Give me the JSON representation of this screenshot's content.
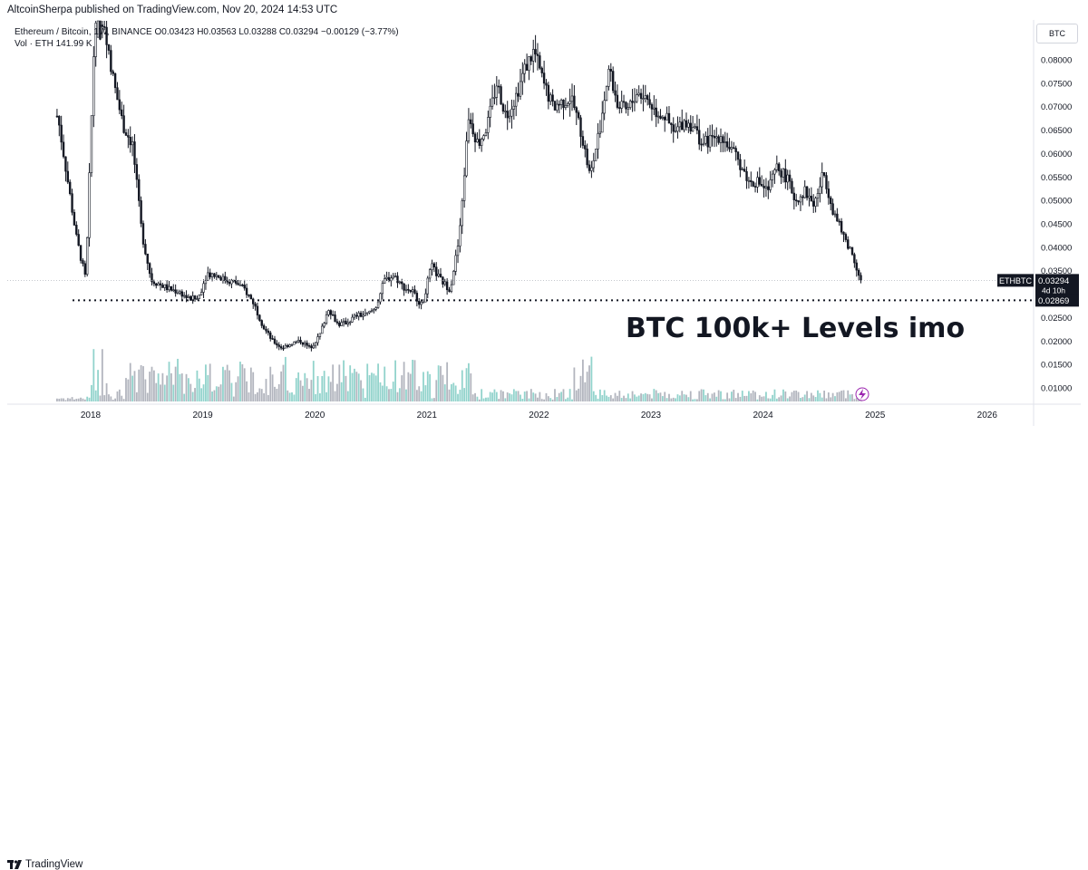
{
  "header": {
    "published": "AltcoinSherpa published on TradingView.com, Nov 20, 2024 14:53 UTC"
  },
  "legend": {
    "line1": "Ethereum / Bitcoin, 1W, BINANCE  O0.03423  H0.03563  L0.03288  C0.03294  −0.00129 (−3.77%)",
    "line2": "Vol · ETH  141.99 K"
  },
  "currency_button": "BTC",
  "footer": {
    "brand": "TradingView"
  },
  "colors": {
    "candle": "#131722",
    "volume_up": "#92d3cc",
    "volume_down": "#b2b5be",
    "axis_text": "#131722",
    "grid": "#f0f3fa",
    "price_line": "#787b86"
  },
  "chart_data": {
    "type": "candlestick",
    "symbol": "ETHBTC",
    "title": "Ethereum / Bitcoin, 1W, BINANCE",
    "x_ticks": [
      "2018",
      "2019",
      "2020",
      "2021",
      "2022",
      "2023",
      "2024",
      "2025",
      "2026"
    ],
    "y_ticks": [
      0.01,
      0.015,
      0.02,
      0.025,
      0.03,
      0.035,
      0.04,
      0.045,
      0.05,
      0.055,
      0.06,
      0.065,
      0.07,
      0.075,
      0.08
    ],
    "y_tick_labels": [
      "0.01000",
      "0.01500",
      "0.02000",
      "0.02500",
      "0.03000",
      "0.03500",
      "0.04000",
      "0.04500",
      "0.05000",
      "0.05500",
      "0.06000",
      "0.06500",
      "0.07000",
      "0.07500",
      "0.08000"
    ],
    "ylim": [
      0.0065,
      0.0843
    ],
    "price_series": [
      {
        "date": "2017-09",
        "close": 0.068
      },
      {
        "date": "2017-10",
        "close": 0.055
      },
      {
        "date": "2017-11",
        "close": 0.042
      },
      {
        "date": "2017-12",
        "close": 0.033
      },
      {
        "date": "2018-01",
        "close": 0.09
      },
      {
        "date": "2018-02",
        "close": 0.088
      },
      {
        "date": "2018-03",
        "close": 0.075
      },
      {
        "date": "2018-04",
        "close": 0.066
      },
      {
        "date": "2018-05",
        "close": 0.062
      },
      {
        "date": "2018-06",
        "close": 0.043
      },
      {
        "date": "2018-07",
        "close": 0.033
      },
      {
        "date": "2018-08",
        "close": 0.032
      },
      {
        "date": "2018-09",
        "close": 0.031
      },
      {
        "date": "2018-10",
        "close": 0.0305
      },
      {
        "date": "2018-11",
        "close": 0.029
      },
      {
        "date": "2018-12",
        "close": 0.029
      },
      {
        "date": "2019-01",
        "close": 0.0345
      },
      {
        "date": "2019-02",
        "close": 0.034
      },
      {
        "date": "2019-03",
        "close": 0.033
      },
      {
        "date": "2019-04",
        "close": 0.0325
      },
      {
        "date": "2019-05",
        "close": 0.031
      },
      {
        "date": "2019-06",
        "close": 0.028
      },
      {
        "date": "2019-07",
        "close": 0.023
      },
      {
        "date": "2019-08",
        "close": 0.02
      },
      {
        "date": "2019-09",
        "close": 0.0185
      },
      {
        "date": "2019-10",
        "close": 0.0195
      },
      {
        "date": "2019-11",
        "close": 0.02
      },
      {
        "date": "2019-12",
        "close": 0.0185
      },
      {
        "date": "2020-01",
        "close": 0.021
      },
      {
        "date": "2020-02",
        "close": 0.027
      },
      {
        "date": "2020-03",
        "close": 0.0235
      },
      {
        "date": "2020-04",
        "close": 0.024
      },
      {
        "date": "2020-05",
        "close": 0.0255
      },
      {
        "date": "2020-06",
        "close": 0.0255
      },
      {
        "date": "2020-07",
        "close": 0.027
      },
      {
        "date": "2020-08",
        "close": 0.033
      },
      {
        "date": "2020-09",
        "close": 0.034
      },
      {
        "date": "2020-10",
        "close": 0.0315
      },
      {
        "date": "2020-11",
        "close": 0.0305
      },
      {
        "date": "2020-12",
        "close": 0.0275
      },
      {
        "date": "2021-01",
        "close": 0.036
      },
      {
        "date": "2021-02",
        "close": 0.033
      },
      {
        "date": "2021-03",
        "close": 0.031
      },
      {
        "date": "2021-04",
        "close": 0.042
      },
      {
        "date": "2021-05",
        "close": 0.068
      },
      {
        "date": "2021-06",
        "close": 0.062
      },
      {
        "date": "2021-07",
        "close": 0.066
      },
      {
        "date": "2021-08",
        "close": 0.075
      },
      {
        "date": "2021-09",
        "close": 0.068
      },
      {
        "date": "2021-10",
        "close": 0.072
      },
      {
        "date": "2021-11",
        "close": 0.078
      },
      {
        "date": "2021-12",
        "close": 0.082
      },
      {
        "date": "2022-01",
        "close": 0.075
      },
      {
        "date": "2022-02",
        "close": 0.07
      },
      {
        "date": "2022-03",
        "close": 0.071
      },
      {
        "date": "2022-04",
        "close": 0.072
      },
      {
        "date": "2022-05",
        "close": 0.065
      },
      {
        "date": "2022-06",
        "close": 0.055
      },
      {
        "date": "2022-07",
        "close": 0.065
      },
      {
        "date": "2022-08",
        "close": 0.078
      },
      {
        "date": "2022-09",
        "close": 0.07
      },
      {
        "date": "2022-10",
        "close": 0.069
      },
      {
        "date": "2022-11",
        "close": 0.073
      },
      {
        "date": "2022-12",
        "close": 0.072
      },
      {
        "date": "2023-01",
        "close": 0.069
      },
      {
        "date": "2023-02",
        "close": 0.068
      },
      {
        "date": "2023-03",
        "close": 0.064
      },
      {
        "date": "2023-04",
        "close": 0.067
      },
      {
        "date": "2023-05",
        "close": 0.066
      },
      {
        "date": "2023-06",
        "close": 0.062
      },
      {
        "date": "2023-07",
        "close": 0.063
      },
      {
        "date": "2023-08",
        "close": 0.064
      },
      {
        "date": "2023-09",
        "close": 0.061
      },
      {
        "date": "2023-10",
        "close": 0.058
      },
      {
        "date": "2023-11",
        "close": 0.054
      },
      {
        "date": "2023-12",
        "close": 0.054
      },
      {
        "date": "2024-01",
        "close": 0.052
      },
      {
        "date": "2024-02",
        "close": 0.057
      },
      {
        "date": "2024-03",
        "close": 0.055
      },
      {
        "date": "2024-04",
        "close": 0.05
      },
      {
        "date": "2024-05",
        "close": 0.052
      },
      {
        "date": "2024-06",
        "close": 0.049
      },
      {
        "date": "2024-07",
        "close": 0.056
      },
      {
        "date": "2024-08",
        "close": 0.048
      },
      {
        "date": "2024-09",
        "close": 0.043
      },
      {
        "date": "2024-10",
        "close": 0.039
      },
      {
        "date": "2024-11",
        "close": 0.0329
      }
    ],
    "last_price": {
      "label": "ETHBTC",
      "value": "0.03294",
      "countdown": "4d 10h"
    },
    "support_line": {
      "value": "0.02869"
    },
    "annotation": "BTC 100k+ Levels imo",
    "volume_label": "Vol · ETH 141.99 K"
  }
}
